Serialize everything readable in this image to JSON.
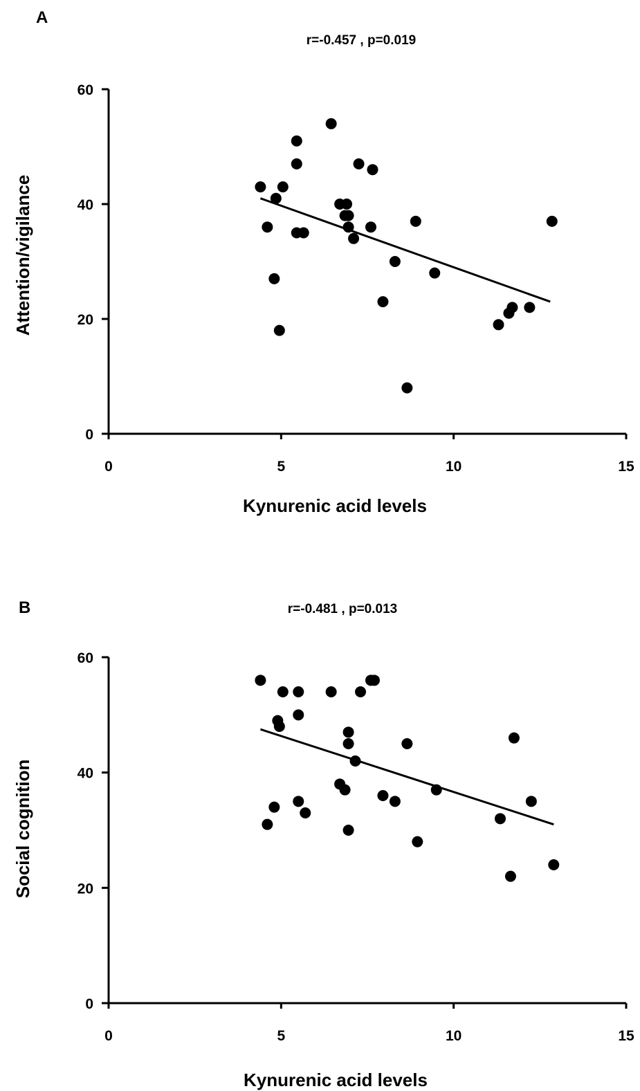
{
  "chart_data": [
    {
      "type": "scatter",
      "panel_label": "A",
      "title": "r=-0.457 , p=0.019",
      "xlabel": "Kynurenic acid levels",
      "ylabel": "Attention/vigilance",
      "xlim": [
        0,
        15
      ],
      "ylim": [
        0,
        60
      ],
      "xticks": [
        0,
        5,
        10,
        15
      ],
      "yticks": [
        0,
        20,
        40,
        60
      ],
      "grid": false,
      "legend": "none",
      "marker_color": "#000000",
      "points": [
        {
          "x": 4.4,
          "y": 43
        },
        {
          "x": 4.6,
          "y": 36
        },
        {
          "x": 4.8,
          "y": 27
        },
        {
          "x": 4.85,
          "y": 41
        },
        {
          "x": 4.95,
          "y": 18
        },
        {
          "x": 5.05,
          "y": 43
        },
        {
          "x": 5.45,
          "y": 51
        },
        {
          "x": 5.45,
          "y": 47
        },
        {
          "x": 5.45,
          "y": 35
        },
        {
          "x": 5.65,
          "y": 35
        },
        {
          "x": 6.45,
          "y": 54
        },
        {
          "x": 6.7,
          "y": 40
        },
        {
          "x": 6.85,
          "y": 38
        },
        {
          "x": 6.9,
          "y": 40
        },
        {
          "x": 6.95,
          "y": 38
        },
        {
          "x": 6.95,
          "y": 36
        },
        {
          "x": 7.1,
          "y": 34
        },
        {
          "x": 7.25,
          "y": 47
        },
        {
          "x": 7.6,
          "y": 36
        },
        {
          "x": 7.65,
          "y": 46
        },
        {
          "x": 7.95,
          "y": 23
        },
        {
          "x": 8.3,
          "y": 30
        },
        {
          "x": 8.65,
          "y": 8
        },
        {
          "x": 8.9,
          "y": 37
        },
        {
          "x": 9.45,
          "y": 28
        },
        {
          "x": 11.3,
          "y": 19
        },
        {
          "x": 11.6,
          "y": 21
        },
        {
          "x": 11.7,
          "y": 22
        },
        {
          "x": 12.2,
          "y": 22
        },
        {
          "x": 12.85,
          "y": 37
        }
      ],
      "regression_line": {
        "x": [
          4.4,
          12.8
        ],
        "y": [
          41,
          23
        ]
      }
    },
    {
      "type": "scatter",
      "panel_label": "B",
      "title": "r=-0.481 , p=0.013",
      "xlabel": "Kynurenic acid levels",
      "ylabel": "Social cognition",
      "xlim": [
        0,
        15
      ],
      "ylim": [
        0,
        60
      ],
      "xticks": [
        0,
        5,
        10,
        15
      ],
      "yticks": [
        0,
        20,
        40,
        60
      ],
      "grid": false,
      "legend": "none",
      "marker_color": "#000000",
      "points": [
        {
          "x": 4.4,
          "y": 56
        },
        {
          "x": 4.6,
          "y": 31
        },
        {
          "x": 4.8,
          "y": 34
        },
        {
          "x": 4.9,
          "y": 49
        },
        {
          "x": 4.95,
          "y": 48
        },
        {
          "x": 5.05,
          "y": 54
        },
        {
          "x": 5.5,
          "y": 54
        },
        {
          "x": 5.5,
          "y": 50
        },
        {
          "x": 5.5,
          "y": 35
        },
        {
          "x": 5.7,
          "y": 33
        },
        {
          "x": 6.45,
          "y": 54
        },
        {
          "x": 6.7,
          "y": 38
        },
        {
          "x": 6.85,
          "y": 37
        },
        {
          "x": 6.95,
          "y": 47
        },
        {
          "x": 6.95,
          "y": 45
        },
        {
          "x": 6.95,
          "y": 30
        },
        {
          "x": 7.15,
          "y": 42
        },
        {
          "x": 7.3,
          "y": 54
        },
        {
          "x": 7.6,
          "y": 56
        },
        {
          "x": 7.7,
          "y": 56
        },
        {
          "x": 7.95,
          "y": 36
        },
        {
          "x": 8.3,
          "y": 35
        },
        {
          "x": 8.65,
          "y": 45
        },
        {
          "x": 8.95,
          "y": 28
        },
        {
          "x": 9.5,
          "y": 37
        },
        {
          "x": 11.35,
          "y": 32
        },
        {
          "x": 11.65,
          "y": 22
        },
        {
          "x": 11.75,
          "y": 46
        },
        {
          "x": 12.25,
          "y": 35
        },
        {
          "x": 12.9,
          "y": 24
        }
      ],
      "regression_line": {
        "x": [
          4.4,
          12.9
        ],
        "y": [
          47.5,
          31
        ]
      }
    }
  ]
}
